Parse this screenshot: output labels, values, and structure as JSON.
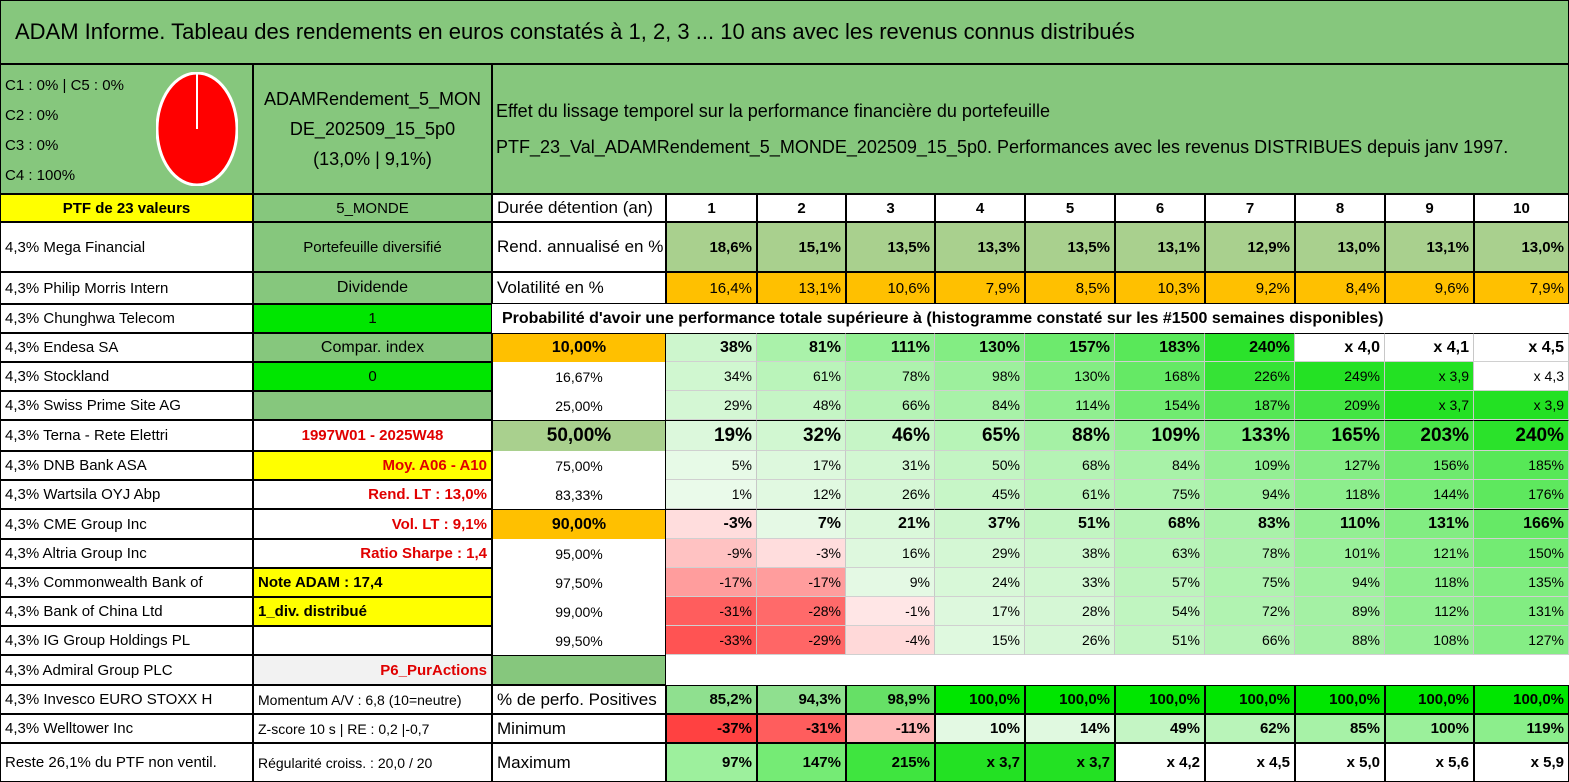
{
  "title": "ADAM Informe. Tableau des rendements en euros constatés à 1, 2, 3 ... 10 ans avec les revenus connus distribués",
  "categories": [
    "C1 : 0% | C5 : 0%",
    "C2 : 0%",
    "C3 : 0%",
    "C4 : 100%"
  ],
  "pie": {
    "value_fraction": 1.0,
    "color": "#ff0000"
  },
  "portfolio": {
    "name": "ADAMRendement_5_MONDE_202509_15_5p0",
    "name_line1": "ADAMRendement_5_MON",
    "name_line2": "DE_202509_15_5p0",
    "stats": "(13,0% | 9,1%)",
    "count_label": "PTF de 23 valeurs",
    "zone": "5_MONDE"
  },
  "header_text": {
    "line1": "Effet du lissage temporel sur la performance financière du portefeuille",
    "line2": "PTF_23_Val_ADAMRendement_5_MONDE_202509_15_5p0. Performances avec les revenus DISTRIBUES depuis janv 1997."
  },
  "holdings": [
    "4,3% Mega Financial",
    "4,3% Philip Morris Intern",
    "4,3% Chunghwa Telecom",
    "4,3% Endesa SA",
    "4,3% Stockland",
    "4,3% Swiss Prime Site AG",
    "4,3% Terna - Rete Elettri",
    "4,3% DNB Bank ASA",
    "4,3% Wartsila OYJ Abp",
    "4,3% CME Group Inc",
    "4,3% Altria Group Inc",
    "4,3% Commonwealth Bank of",
    "4,3% Bank of China Ltd",
    "4,3% IG Group Holdings PL",
    "4,3% Admiral Group PLC",
    "4,3% Invesco EURO STOXX H",
    "4,3% Welltower Inc",
    "Reste 26,1% du PTF non ventil."
  ],
  "info": {
    "diversified": "Portefeuille diversifié",
    "dividend": "Dividende",
    "dividend_val": "1",
    "index_comp": "Compar. index",
    "index_val": "0",
    "period": "1997W01 - 2025W48",
    "avg": "Moy. A06 - A10",
    "rend_lt": "Rend. LT : 13,0%",
    "vol_lt": "Vol. LT : 9,1%",
    "sharpe": "Ratio Sharpe : 1,4",
    "note": "Note ADAM : 17,4",
    "div_label": "1_div. distribué",
    "strategy": "P6_PurActions",
    "momentum": "Momentum A/V : 6,8 (10=neutre)",
    "zscore": "Z-score 10 s | RE : 0,2 |-0,7",
    "regularity": "Régularité croiss. : 20,0 / 20"
  },
  "table": {
    "duration_label": "Durée détention (an)",
    "years": [
      "1",
      "2",
      "3",
      "4",
      "5",
      "6",
      "7",
      "8",
      "9",
      "10"
    ],
    "rend_label": "Rend. annualisé en %",
    "rend": [
      "18,6%",
      "15,1%",
      "13,5%",
      "13,3%",
      "13,5%",
      "13,1%",
      "12,9%",
      "13,0%",
      "13,1%",
      "13,0%"
    ],
    "vol_label": "Volatilité en %",
    "vol": [
      "16,4%",
      "13,1%",
      "10,6%",
      "7,9%",
      "8,5%",
      "10,3%",
      "9,2%",
      "8,4%",
      "9,6%",
      "7,9%"
    ],
    "prob_title": "Probabilité d'avoir une performance totale supérieure à (histogramme constaté sur les #1500 semaines disponibles)",
    "prob_rows": [
      {
        "p": "10,00%",
        "vals": [
          "38%",
          "81%",
          "111%",
          "130%",
          "157%",
          "183%",
          "240%",
          "x 4,0",
          "x 4,1",
          "x 4,5"
        ]
      },
      {
        "p": "16,67%",
        "vals": [
          "34%",
          "61%",
          "78%",
          "98%",
          "130%",
          "168%",
          "226%",
          "249%",
          "x 3,9",
          "x 4,3"
        ]
      },
      {
        "p": "25,00%",
        "vals": [
          "29%",
          "48%",
          "66%",
          "84%",
          "114%",
          "154%",
          "187%",
          "209%",
          "x 3,7",
          "x 3,9"
        ]
      },
      {
        "p": "50,00%",
        "vals": [
          "19%",
          "32%",
          "46%",
          "65%",
          "88%",
          "109%",
          "133%",
          "165%",
          "203%",
          "240%"
        ]
      },
      {
        "p": "75,00%",
        "vals": [
          "5%",
          "17%",
          "31%",
          "50%",
          "68%",
          "84%",
          "109%",
          "127%",
          "156%",
          "185%"
        ]
      },
      {
        "p": "83,33%",
        "vals": [
          "1%",
          "12%",
          "26%",
          "45%",
          "61%",
          "75%",
          "94%",
          "118%",
          "144%",
          "176%"
        ]
      },
      {
        "p": "90,00%",
        "vals": [
          "-3%",
          "7%",
          "21%",
          "37%",
          "51%",
          "68%",
          "83%",
          "110%",
          "131%",
          "166%"
        ]
      },
      {
        "p": "95,00%",
        "vals": [
          "-9%",
          "-3%",
          "16%",
          "29%",
          "38%",
          "63%",
          "78%",
          "101%",
          "121%",
          "150%"
        ]
      },
      {
        "p": "97,50%",
        "vals": [
          "-17%",
          "-17%",
          "9%",
          "24%",
          "33%",
          "57%",
          "75%",
          "94%",
          "118%",
          "135%"
        ]
      },
      {
        "p": "99,00%",
        "vals": [
          "-31%",
          "-28%",
          "-1%",
          "17%",
          "28%",
          "54%",
          "72%",
          "89%",
          "112%",
          "131%"
        ]
      },
      {
        "p": "99,50%",
        "vals": [
          "-33%",
          "-29%",
          "-4%",
          "15%",
          "26%",
          "51%",
          "66%",
          "88%",
          "108%",
          "127%"
        ]
      }
    ],
    "pos_label": "% de perfo. Positives",
    "pos": [
      "85,2%",
      "94,3%",
      "98,9%",
      "100,0%",
      "100,0%",
      "100,0%",
      "100,0%",
      "100,0%",
      "100,0%",
      "100,0%"
    ],
    "min_label": "Minimum",
    "min": [
      "-37%",
      "-31%",
      "-11%",
      "10%",
      "14%",
      "49%",
      "62%",
      "85%",
      "100%",
      "119%"
    ],
    "max_label": "Maximum",
    "max": [
      "97%",
      "147%",
      "215%",
      "x 3,7",
      "x 3,7",
      "x 4,2",
      "x 4,5",
      "x 5,0",
      "x 5,6",
      "x 5,9"
    ]
  }
}
